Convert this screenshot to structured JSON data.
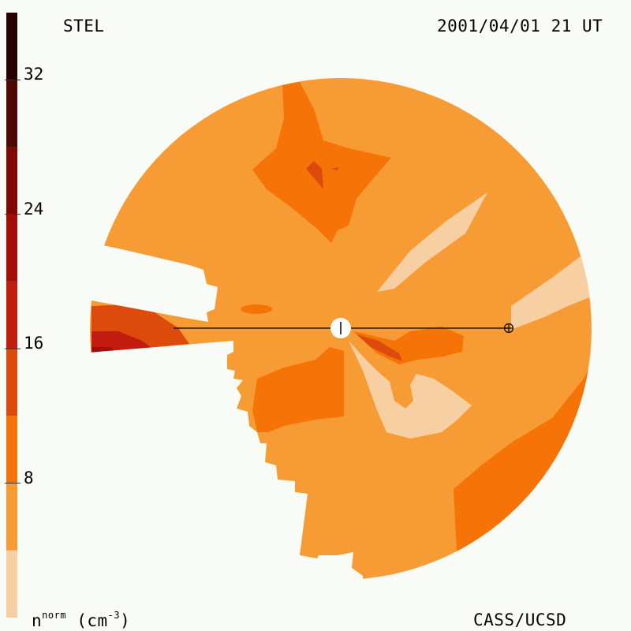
{
  "header": {
    "observatory": "STEL",
    "timestamp": "2001/04/01 21 UT"
  },
  "footer": {
    "credit": "CASS/UCSD",
    "unit_base": "n",
    "unit_sup": "norm",
    "unit_rest": "(cm",
    "unit_exp": "-3",
    "unit_close": ")"
  },
  "chart_data": {
    "type": "heatmap",
    "subtype": "polar-contour",
    "title": "",
    "colorbar": {
      "min": 0,
      "max": 36,
      "ticks": [
        8,
        16,
        24,
        32
      ],
      "tick_labels": [
        "8",
        "16",
        "24",
        "32"
      ],
      "bands": [
        {
          "from": 0,
          "to": 4,
          "color": "#f7cfa2"
        },
        {
          "from": 4,
          "to": 8,
          "color": "#f79c35"
        },
        {
          "from": 8,
          "to": 12,
          "color": "#f57307"
        },
        {
          "from": 12,
          "to": 16,
          "color": "#dd4b0c"
        },
        {
          "from": 16,
          "to": 20,
          "color": "#c21c0e"
        },
        {
          "from": 20,
          "to": 24,
          "color": "#a50d07"
        },
        {
          "from": 24,
          "to": 28,
          "color": "#7d0804"
        },
        {
          "from": 28,
          "to": 32,
          "color": "#4f0703"
        },
        {
          "from": 32,
          "to": 36,
          "color": "#240302"
        }
      ]
    },
    "markers": [
      "sun",
      "earth"
    ],
    "dominant_level": "4-8",
    "notable_regions": [
      {
        "level": "8-12",
        "location": "north"
      },
      {
        "level": "8-12",
        "location": "southeast limb"
      },
      {
        "level": "0-4",
        "location": "east-northeast streak"
      },
      {
        "level": "16-20",
        "location": "west wedge"
      }
    ]
  }
}
